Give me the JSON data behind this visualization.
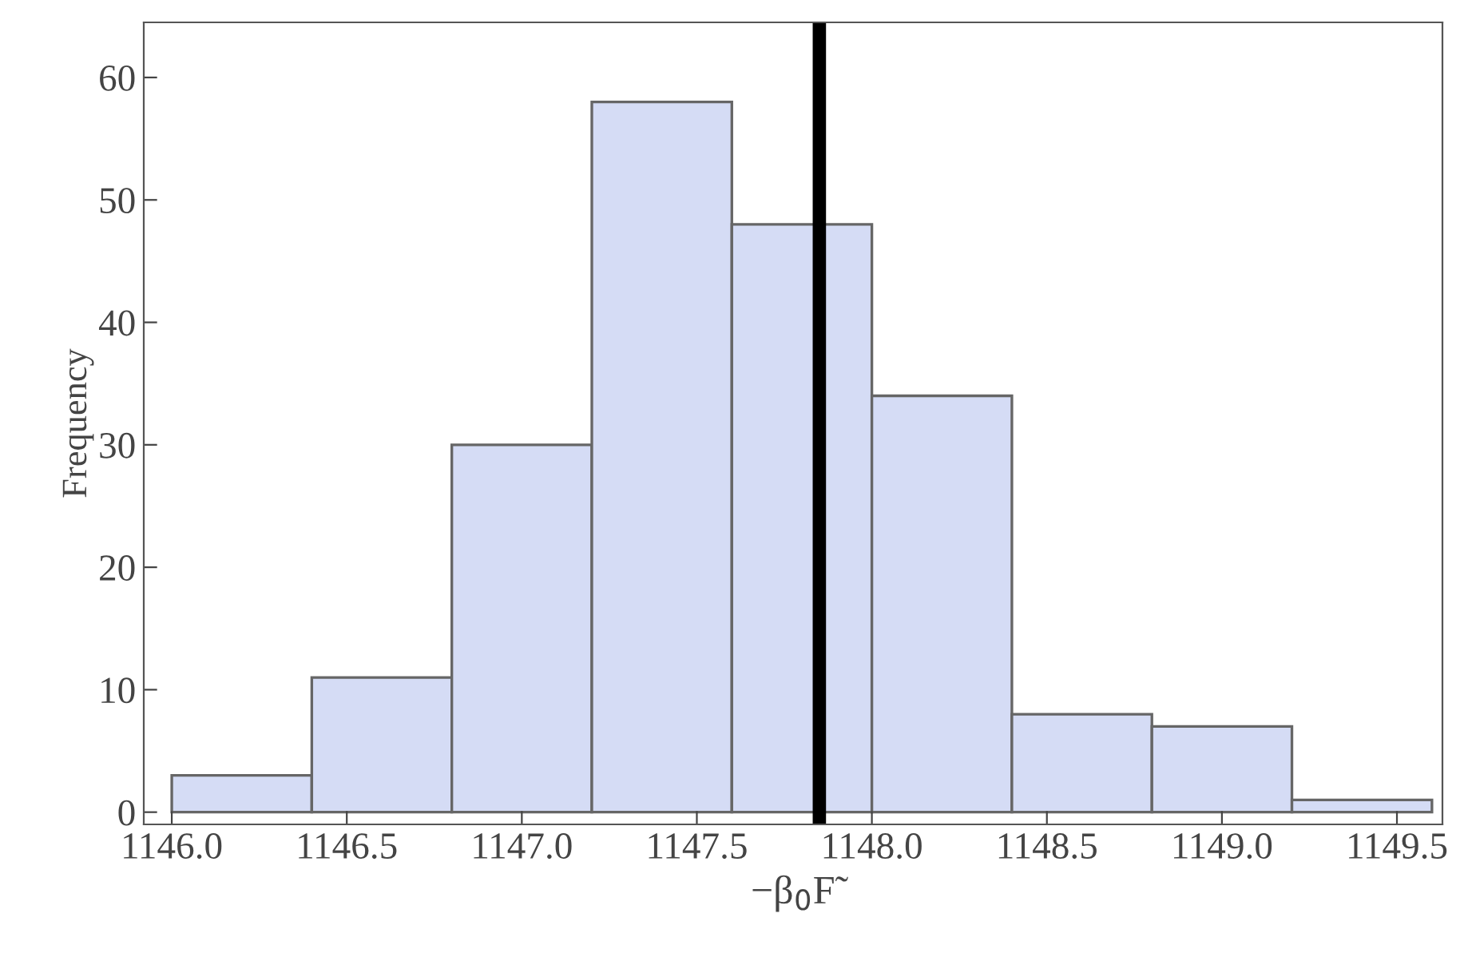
{
  "chart_data": {
    "type": "histogram",
    "xlabel": "−β$_{0}$F̃",
    "ylabel": "Frequency",
    "bins": [
      1146.0,
      1146.4,
      1146.8,
      1147.2,
      1147.6,
      1148.0,
      1148.4,
      1148.8,
      1149.2,
      1149.6
    ],
    "values": [
      3,
      11,
      30,
      58,
      48,
      34,
      8,
      7,
      1
    ],
    "color": "#d5dcf5",
    "xlim": [
      1145.92,
      1149.63
    ],
    "ylim": [
      -1,
      64.5
    ],
    "xticks": [
      {
        "value": 1146.0,
        "label": "1146.0"
      },
      {
        "value": 1146.5,
        "label": "1146.5"
      },
      {
        "value": 1147.0,
        "label": "1147.0"
      },
      {
        "value": 1147.5,
        "label": "1147.5"
      },
      {
        "value": 1148.0,
        "label": "1148.0"
      },
      {
        "value": 1148.5,
        "label": "1148.5"
      },
      {
        "value": 1149.0,
        "label": "1149.0"
      },
      {
        "value": 1149.5,
        "label": "1149.5"
      }
    ],
    "yticks": [
      0,
      10,
      20,
      30,
      40,
      50,
      60
    ],
    "ref_lines": [
      {
        "axis": "x",
        "value": 1147.85,
        "color": "#000000"
      }
    ],
    "grid": false
  }
}
